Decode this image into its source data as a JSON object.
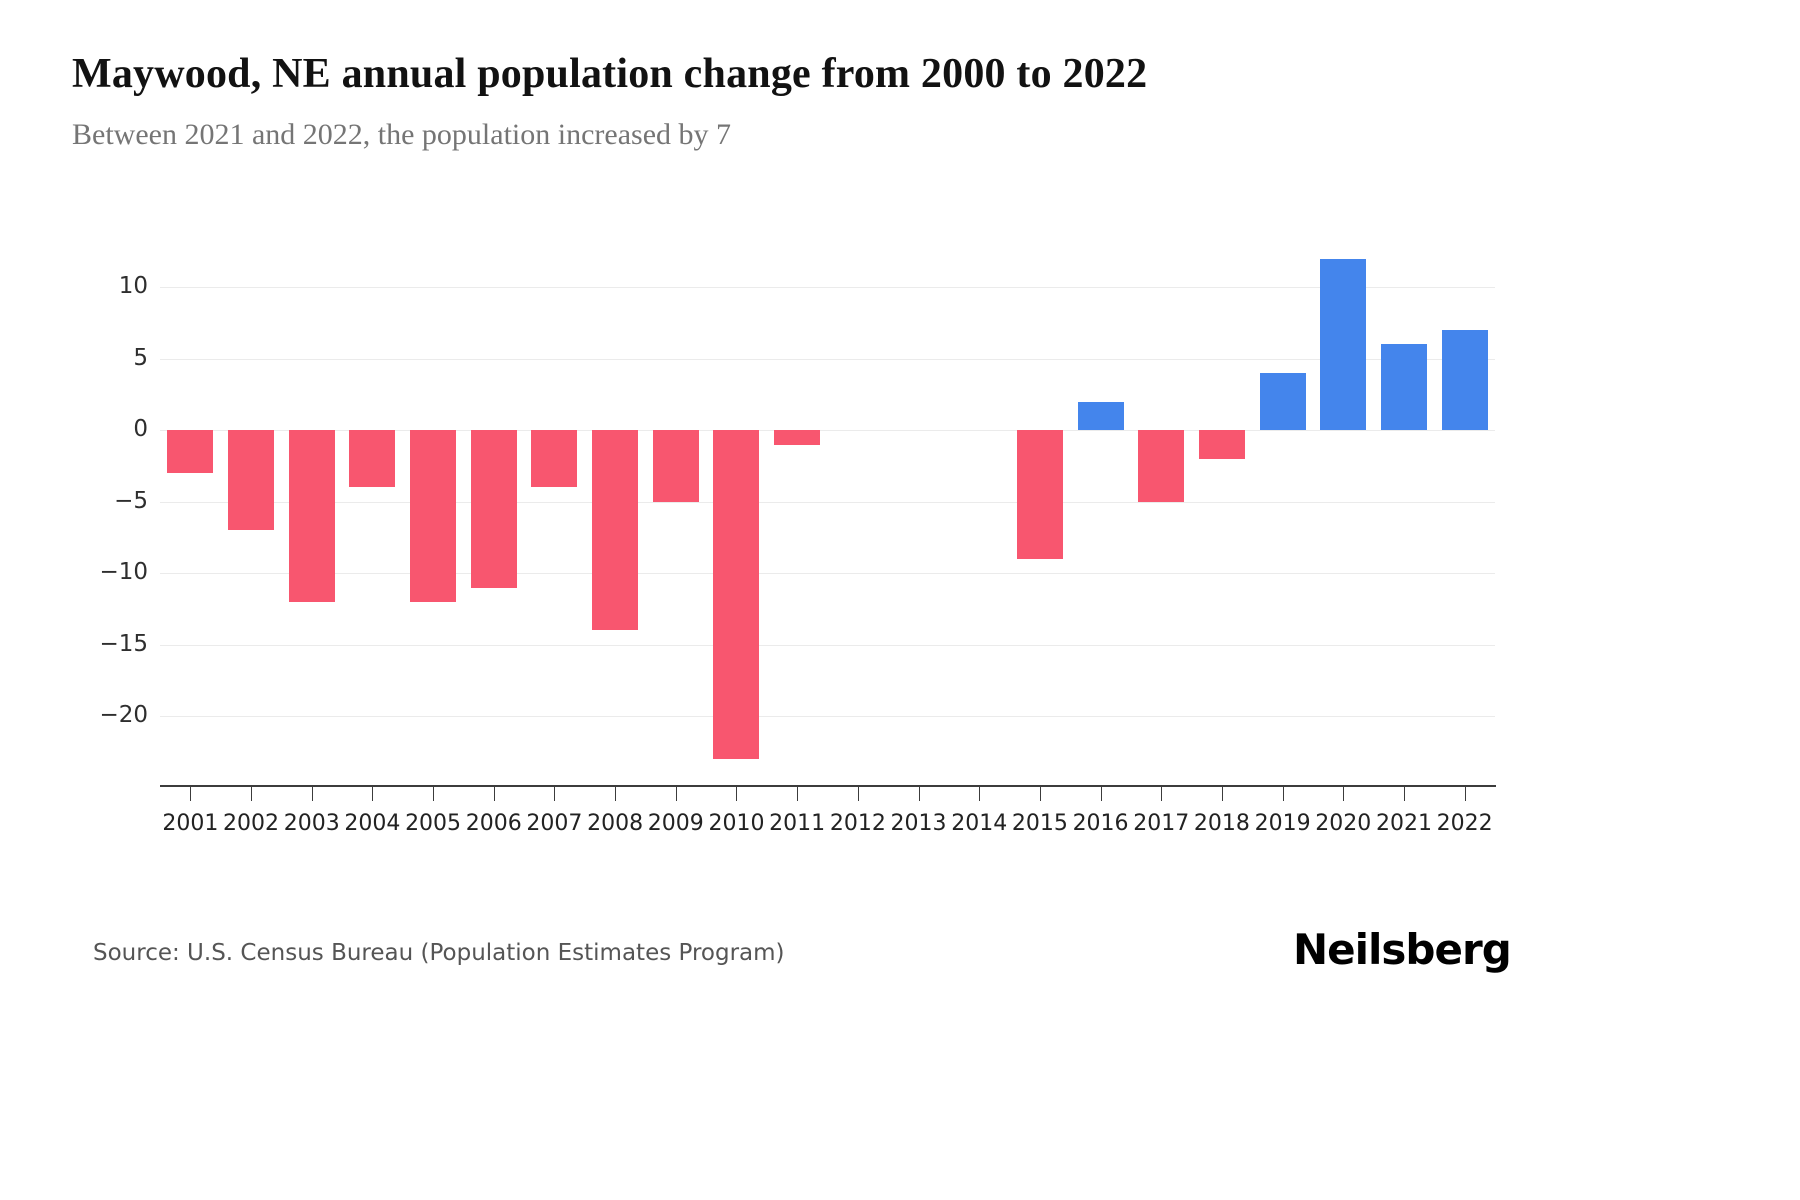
{
  "chart_data": {
    "type": "bar",
    "title": "Maywood, NE annual population change from 2000 to 2022",
    "subtitle": "Between 2021 and 2022, the population increased by 7",
    "categories": [
      "2001",
      "2002",
      "2003",
      "2004",
      "2005",
      "2006",
      "2007",
      "2008",
      "2009",
      "2010",
      "2011",
      "2012",
      "2013",
      "2014",
      "2015",
      "2016",
      "2017",
      "2018",
      "2019",
      "2020",
      "2021",
      "2022"
    ],
    "values": [
      -3,
      -7,
      -12,
      -4,
      -12,
      -11,
      -4,
      -14,
      -5,
      -23,
      -1,
      0,
      0,
      0,
      -9,
      2,
      -5,
      -2,
      4,
      12,
      6,
      7
    ],
    "yticks": [
      10,
      5,
      0,
      -5,
      -10,
      -15,
      -20
    ],
    "ylim": [
      -24.8,
      13.3
    ],
    "xlabel": "",
    "ylabel": "",
    "grid": true,
    "legend_position": "none",
    "positive_color": "#4485ec",
    "negative_color": "#f8566f"
  },
  "footer": {
    "source": "Source: U.S. Census Bureau (Population Estimates Program)",
    "brand": "Neilsberg"
  }
}
